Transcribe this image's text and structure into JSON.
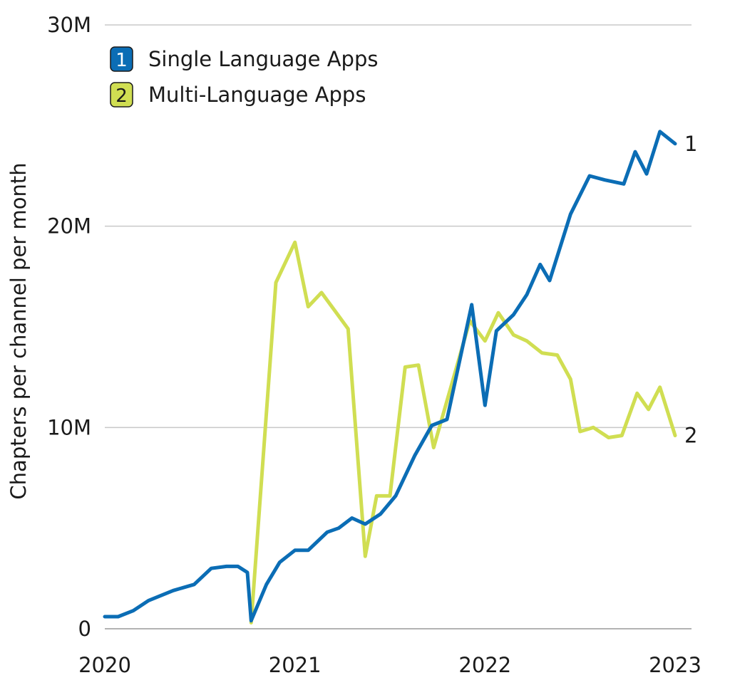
{
  "chart_data": {
    "type": "line",
    "title": "",
    "xlabel": "",
    "ylabel": "Chapters per channel per month",
    "x_range": [
      2020.0,
      2023.0
    ],
    "ylim": [
      0,
      30000000
    ],
    "x_ticks": [
      {
        "value": 2020,
        "label": "2020"
      },
      {
        "value": 2021,
        "label": "2021"
      },
      {
        "value": 2022,
        "label": "2022"
      },
      {
        "value": 2023,
        "label": "2023"
      }
    ],
    "y_ticks": [
      {
        "value": 0,
        "label": "0"
      },
      {
        "value": 10000000,
        "label": "10M"
      },
      {
        "value": 20000000,
        "label": "20M"
      },
      {
        "value": 30000000,
        "label": "30M"
      }
    ],
    "grid": true,
    "legend_position": "top-left",
    "series": [
      {
        "name": "Single Language Apps",
        "marker": "1",
        "color": "#0b6db5",
        "points": [
          [
            2020.0,
            600000
          ],
          [
            2020.07,
            600000
          ],
          [
            2020.15,
            900000
          ],
          [
            2020.23,
            1400000
          ],
          [
            2020.36,
            1900000
          ],
          [
            2020.47,
            2200000
          ],
          [
            2020.56,
            3000000
          ],
          [
            2020.64,
            3100000
          ],
          [
            2020.7,
            3100000
          ],
          [
            2020.75,
            2800000
          ],
          [
            2020.77,
            400000
          ],
          [
            2020.85,
            2200000
          ],
          [
            2020.92,
            3300000
          ],
          [
            2021.0,
            3900000
          ],
          [
            2021.07,
            3900000
          ],
          [
            2021.17,
            4800000
          ],
          [
            2021.23,
            5000000
          ],
          [
            2021.3,
            5500000
          ],
          [
            2021.37,
            5200000
          ],
          [
            2021.45,
            5700000
          ],
          [
            2021.53,
            6600000
          ],
          [
            2021.63,
            8600000
          ],
          [
            2021.72,
            10100000
          ],
          [
            2021.8,
            10400000
          ],
          [
            2021.93,
            16100000
          ],
          [
            2022.0,
            11100000
          ],
          [
            2022.06,
            14800000
          ],
          [
            2022.15,
            15600000
          ],
          [
            2022.22,
            16600000
          ],
          [
            2022.29,
            18100000
          ],
          [
            2022.34,
            17300000
          ],
          [
            2022.45,
            20600000
          ],
          [
            2022.55,
            22500000
          ],
          [
            2022.63,
            22300000
          ],
          [
            2022.73,
            22100000
          ],
          [
            2022.79,
            23700000
          ],
          [
            2022.85,
            22600000
          ],
          [
            2022.92,
            24700000
          ],
          [
            2023.0,
            24100000
          ]
        ]
      },
      {
        "name": "Multi-Language Apps",
        "marker": "2",
        "color": "#d0de52",
        "points": [
          [
            2020.77,
            300000
          ],
          [
            2020.9,
            17200000
          ],
          [
            2021.0,
            19200000
          ],
          [
            2021.07,
            16000000
          ],
          [
            2021.14,
            16700000
          ],
          [
            2021.21,
            15800000
          ],
          [
            2021.28,
            14900000
          ],
          [
            2021.37,
            3600000
          ],
          [
            2021.43,
            6600000
          ],
          [
            2021.5,
            6600000
          ],
          [
            2021.58,
            13000000
          ],
          [
            2021.65,
            13100000
          ],
          [
            2021.73,
            9000000
          ],
          [
            2021.92,
            15300000
          ],
          [
            2022.0,
            14300000
          ],
          [
            2022.07,
            15700000
          ],
          [
            2022.15,
            14600000
          ],
          [
            2022.22,
            14300000
          ],
          [
            2022.3,
            13700000
          ],
          [
            2022.38,
            13600000
          ],
          [
            2022.45,
            12400000
          ],
          [
            2022.5,
            9800000
          ],
          [
            2022.57,
            10000000
          ],
          [
            2022.65,
            9500000
          ],
          [
            2022.72,
            9600000
          ],
          [
            2022.8,
            11700000
          ],
          [
            2022.86,
            10900000
          ],
          [
            2022.92,
            12000000
          ],
          [
            2023.0,
            9600000
          ]
        ]
      }
    ],
    "end_labels": [
      "1",
      "2"
    ]
  }
}
